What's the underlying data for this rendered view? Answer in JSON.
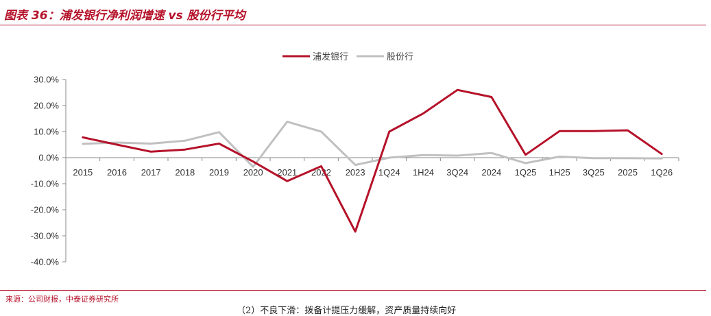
{
  "header": {
    "title": "图表 36：浦发银行净利润增速 vs 股份行平均"
  },
  "footer": {
    "source": "来源：公司财报，中泰证券研究所",
    "cut_text": "（2）不良下滑：拨备计提压力缓解，资产质量持续向好"
  },
  "colors": {
    "spdb": "#b5122a",
    "peer": "#c0c0c0",
    "accent": "#b5122a"
  },
  "chart_data": {
    "type": "line",
    "title": "",
    "xlabel": "",
    "ylabel": "",
    "categories": [
      "2015",
      "2016",
      "2017",
      "2018",
      "2019",
      "2020",
      "2021",
      "2022",
      "2023",
      "1Q24",
      "1H24",
      "3Q24",
      "2024",
      "1Q25",
      "1H25",
      "3Q25",
      "2025",
      "1Q26"
    ],
    "ylim": [
      -40,
      30
    ],
    "yticks": [
      "30.0%",
      "20.0%",
      "10.0%",
      "0.0%",
      "-10.0%",
      "-20.0%",
      "-30.0%",
      "-40.0%"
    ],
    "legend_position": "top-center",
    "grid": false,
    "series": [
      {
        "name": "浦发银行",
        "values": [
          7.8,
          5.0,
          2.3,
          3.1,
          5.4,
          -1.5,
          -9.0,
          -3.3,
          -28.4,
          10.0,
          17.0,
          26.0,
          23.3,
          1.1,
          10.2,
          10.2,
          10.5,
          1.4
        ]
      },
      {
        "name": "股份行",
        "values": [
          5.3,
          5.8,
          5.4,
          6.5,
          9.8,
          -3.5,
          13.8,
          10.0,
          -2.8,
          0.0,
          1.0,
          0.8,
          1.8,
          -2.1,
          0.4,
          -0.2,
          -0.2,
          -0.3
        ]
      }
    ]
  }
}
